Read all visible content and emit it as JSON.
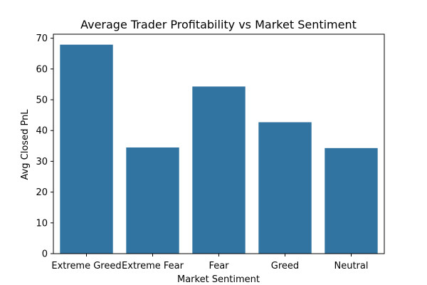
{
  "chart_data": {
    "type": "bar",
    "title": "Average Trader Profitability vs Market Sentiment",
    "xlabel": "Market Sentiment",
    "ylabel": "Avg Closed PnL",
    "categories": [
      "Extreme Greed",
      "Extreme Fear",
      "Fear",
      "Greed",
      "Neutral"
    ],
    "values": [
      67.9,
      34.5,
      54.3,
      42.7,
      34.3
    ],
    "ylim": [
      0,
      71.3
    ],
    "yticks": [
      0,
      10,
      20,
      30,
      40,
      50,
      60,
      70
    ],
    "grid": false,
    "legend": "none",
    "bar_color": "#3274a1"
  }
}
